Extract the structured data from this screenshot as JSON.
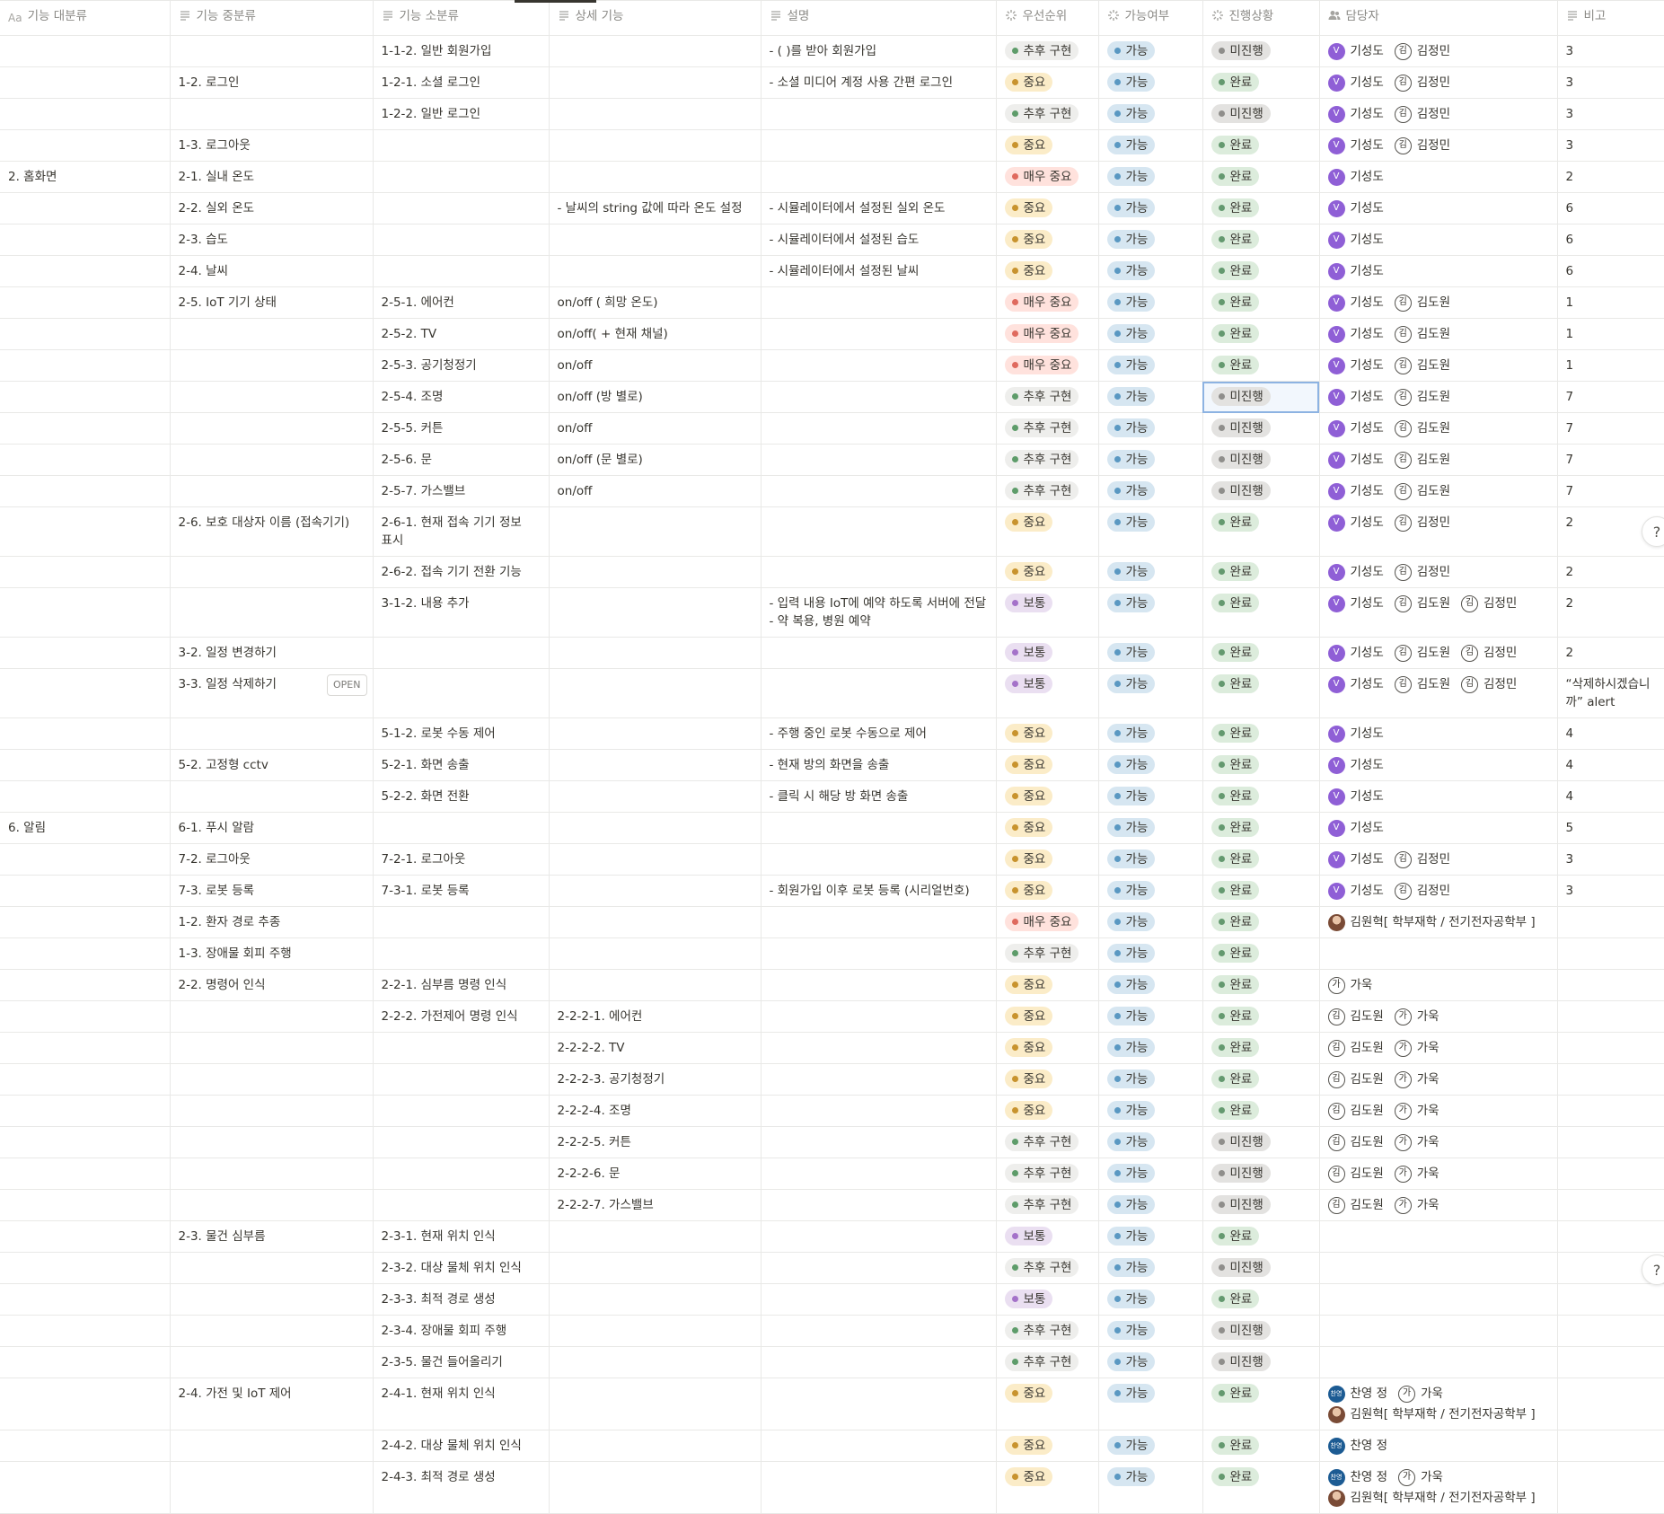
{
  "columns": [
    {
      "icon": "Aa",
      "label": "기능 대분류",
      "kind": "title"
    },
    {
      "label": "기능 중분류",
      "kind": "text"
    },
    {
      "label": "기능 소분류",
      "kind": "text"
    },
    {
      "label": "상세 기능",
      "kind": "text"
    },
    {
      "label": "설명",
      "kind": "text"
    },
    {
      "label": "우선순위",
      "kind": "select"
    },
    {
      "label": "가능여부",
      "kind": "select"
    },
    {
      "label": "진행상황",
      "kind": "select"
    },
    {
      "label": "담당자",
      "kind": "person"
    },
    {
      "label": "비고",
      "kind": "text"
    }
  ],
  "tag_colors": {
    "추후 구현": [
      "#eeeeec",
      "#5e9c6a"
    ],
    "중요": [
      "#fbecc8",
      "#c8932e"
    ],
    "매우 중요": [
      "#ffe2dd",
      "#df6a5e"
    ],
    "보통": [
      "#eadff1",
      "#a472c9"
    ],
    "가능": [
      "#d6e6f1",
      "#5a98c2"
    ],
    "완료": [
      "#dcecdc",
      "#64996f"
    ],
    "미진행": [
      "#e3e2e0",
      "#8f8e8b"
    ]
  },
  "open_button": "OPEN",
  "help_buttons": [
    "?",
    "?"
  ],
  "rows": [
    {
      "minor": "1-1-2. 일반 회원가입",
      "desc": [
        "- ( )를 받아 회원가입"
      ],
      "priority": "추후 구현",
      "possible": "가능",
      "status": "미진행",
      "assignees": [
        {
          "avatar": "V",
          "name": "기성도"
        },
        {
          "avatar": "김",
          "name": "김정민"
        }
      ],
      "note": "3"
    },
    {
      "middle": "1-2. 로그인",
      "minor": "1-2-1. 소셜 로그인",
      "desc": [
        "- 소셜 미디어 계정 사용 간편 로그인"
      ],
      "priority": "중요",
      "possible": "가능",
      "status": "완료",
      "assignees": [
        {
          "avatar": "V",
          "name": "기성도"
        },
        {
          "avatar": "김",
          "name": "김정민"
        }
      ],
      "note": "3"
    },
    {
      "minor": "1-2-2. 일반 로그인",
      "priority": "추후 구현",
      "possible": "가능",
      "status": "미진행",
      "assignees": [
        {
          "avatar": "V",
          "name": "기성도"
        },
        {
          "avatar": "김",
          "name": "김정민"
        }
      ],
      "note": "3"
    },
    {
      "middle": "1-3. 로그아웃",
      "priority": "중요",
      "possible": "가능",
      "status": "완료",
      "assignees": [
        {
          "avatar": "V",
          "name": "기성도"
        },
        {
          "avatar": "김",
          "name": "김정민"
        }
      ],
      "note": "3"
    },
    {
      "major": "2. 홈화면",
      "middle": "2-1. 실내 온도",
      "priority": "매우 중요",
      "possible": "가능",
      "status": "완료",
      "assignees": [
        {
          "avatar": "V",
          "name": "기성도"
        }
      ],
      "note": "2"
    },
    {
      "middle": "2-2. 실외 온도",
      "detail": "- 날씨의 string 값에 따라 온도 설정",
      "desc": [
        "- 시뮬레이터에서 설정된 실외 온도"
      ],
      "priority": "중요",
      "possible": "가능",
      "status": "완료",
      "assignees": [
        {
          "avatar": "V",
          "name": "기성도"
        }
      ],
      "note": "6"
    },
    {
      "middle": "2-3. 습도",
      "desc": [
        "- 시뮬레이터에서 설정된 습도"
      ],
      "priority": "중요",
      "possible": "가능",
      "status": "완료",
      "assignees": [
        {
          "avatar": "V",
          "name": "기성도"
        }
      ],
      "note": "6"
    },
    {
      "middle": "2-4. 날씨",
      "desc": [
        "- 시뮬레이터에서 설정된 날씨"
      ],
      "priority": "중요",
      "possible": "가능",
      "status": "완료",
      "assignees": [
        {
          "avatar": "V",
          "name": "기성도"
        }
      ],
      "note": "6"
    },
    {
      "middle": "2-5. IoT 기기 상태",
      "minor": "2-5-1. 에어컨",
      "detail": "on/off ( 희망 온도)",
      "priority": "매우 중요",
      "possible": "가능",
      "status": "완료",
      "assignees": [
        {
          "avatar": "V",
          "name": "기성도"
        },
        {
          "avatar": "김",
          "name": "김도원"
        }
      ],
      "note": "1"
    },
    {
      "minor": "2-5-2. TV",
      "detail": "on/off( + 현재 채널)",
      "priority": "매우 중요",
      "possible": "가능",
      "status": "완료",
      "assignees": [
        {
          "avatar": "V",
          "name": "기성도"
        },
        {
          "avatar": "김",
          "name": "김도원"
        }
      ],
      "note": "1"
    },
    {
      "minor": "2-5-3. 공기청정기",
      "detail": "on/off",
      "priority": "매우 중요",
      "possible": "가능",
      "status": "완료",
      "assignees": [
        {
          "avatar": "V",
          "name": "기성도"
        },
        {
          "avatar": "김",
          "name": "김도원"
        }
      ],
      "note": "1"
    },
    {
      "minor": "2-5-4. 조명",
      "detail": "on/off (방 별로)",
      "priority": "추후 구현",
      "possible": "가능",
      "status": "미진행",
      "status_selected": true,
      "assignees": [
        {
          "avatar": "V",
          "name": "기성도"
        },
        {
          "avatar": "김",
          "name": "김도원"
        }
      ],
      "note": "7"
    },
    {
      "minor": "2-5-5. 커튼",
      "detail": "on/off",
      "priority": "추후 구현",
      "possible": "가능",
      "status": "미진행",
      "assignees": [
        {
          "avatar": "V",
          "name": "기성도"
        },
        {
          "avatar": "김",
          "name": "김도원"
        }
      ],
      "note": "7"
    },
    {
      "minor": "2-5-6. 문",
      "detail": "on/off (문 별로)",
      "priority": "추후 구현",
      "possible": "가능",
      "status": "미진행",
      "assignees": [
        {
          "avatar": "V",
          "name": "기성도"
        },
        {
          "avatar": "김",
          "name": "김도원"
        }
      ],
      "note": "7"
    },
    {
      "minor": "2-5-7. 가스밸브",
      "detail": "on/off",
      "priority": "추후 구현",
      "possible": "가능",
      "status": "미진행",
      "assignees": [
        {
          "avatar": "V",
          "name": "기성도"
        },
        {
          "avatar": "김",
          "name": "김도원"
        }
      ],
      "note": "7"
    },
    {
      "middle": "2-6. 보호 대상자 이름 (접속기기)",
      "minor": "2-6-1. 현재 접속 기기 정보 표시",
      "priority": "중요",
      "possible": "가능",
      "status": "완료",
      "assignees": [
        {
          "avatar": "V",
          "name": "기성도"
        },
        {
          "avatar": "김",
          "name": "김정민"
        }
      ],
      "note": "2"
    },
    {
      "minor": "2-6-2. 접속 기기 전환 기능",
      "priority": "중요",
      "possible": "가능",
      "status": "완료",
      "assignees": [
        {
          "avatar": "V",
          "name": "기성도"
        },
        {
          "avatar": "김",
          "name": "김정민"
        }
      ],
      "note": "2"
    },
    {
      "minor": "3-1-2. 내용 추가",
      "desc": [
        "- 입력 내용 IoT에 예약 하도록 서버에 전달",
        "- 약 복용, 병원 예약"
      ],
      "priority": "보통",
      "possible": "가능",
      "status": "완료",
      "assignees": [
        {
          "avatar": "V",
          "name": "기성도"
        },
        {
          "avatar": "김",
          "name": "김도원"
        },
        {
          "avatar": "김",
          "name": "김정민"
        }
      ],
      "note": "2"
    },
    {
      "middle": "3-2. 일정 변경하기",
      "priority": "보통",
      "possible": "가능",
      "status": "완료",
      "assignees": [
        {
          "avatar": "V",
          "name": "기성도"
        },
        {
          "avatar": "김",
          "name": "김도원"
        },
        {
          "avatar": "김",
          "name": "김정민"
        }
      ],
      "note": "2"
    },
    {
      "middle": "3-3. 일정 삭제하기",
      "open": true,
      "priority": "보통",
      "possible": "가능",
      "status": "완료",
      "assignees": [
        {
          "avatar": "V",
          "name": "기성도"
        },
        {
          "avatar": "김",
          "name": "김도원"
        },
        {
          "avatar": "김",
          "name": "김정민"
        }
      ],
      "note": "“삭제하시겠습니까” alert"
    },
    {
      "minor": "5-1-2. 로봇 수동 제어",
      "desc": [
        "- 주행  중인 로봇 수동으로 제어"
      ],
      "priority": "중요",
      "possible": "가능",
      "status": "완료",
      "assignees": [
        {
          "avatar": "V",
          "name": "기성도"
        }
      ],
      "note": "4"
    },
    {
      "middle": "5-2. 고정형 cctv",
      "minor": "5-2-1. 화면 송출",
      "desc": [
        "- 현재 방의 화면을 송출"
      ],
      "priority": "중요",
      "possible": "가능",
      "status": "완료",
      "assignees": [
        {
          "avatar": "V",
          "name": "기성도"
        }
      ],
      "note": "4"
    },
    {
      "minor": "5-2-2. 화면 전환",
      "desc": [
        "- 클릭 시 해당 방 화면 송출"
      ],
      "priority": "중요",
      "possible": "가능",
      "status": "완료",
      "assignees": [
        {
          "avatar": "V",
          "name": "기성도"
        }
      ],
      "note": "4"
    },
    {
      "major": "6. 알림",
      "middle": "6-1. 푸시 알람",
      "priority": "중요",
      "possible": "가능",
      "status": "완료",
      "assignees": [
        {
          "avatar": "V",
          "name": "기성도"
        }
      ],
      "note": "5"
    },
    {
      "middle": "7-2. 로그아웃",
      "minor": "7-2-1. 로그아웃",
      "priority": "중요",
      "possible": "가능",
      "status": "완료",
      "assignees": [
        {
          "avatar": "V",
          "name": "기성도"
        },
        {
          "avatar": "김",
          "name": "김정민"
        }
      ],
      "note": "3"
    },
    {
      "middle": "7-3. 로봇 등록",
      "minor": "7-3-1. 로봇 등록",
      "desc": [
        "- 회원가입 이후 로봇 등록 (시리얼번호)"
      ],
      "priority": "중요",
      "possible": "가능",
      "status": "완료",
      "assignees": [
        {
          "avatar": "V",
          "name": "기성도"
        },
        {
          "avatar": "김",
          "name": "김정민"
        }
      ],
      "note": "3"
    },
    {
      "middle": "1-2. 환자 경로 추종",
      "priority": "매우 중요",
      "possible": "가능",
      "status": "완료",
      "assignees": [
        {
          "photo": true,
          "name": "김원혁[ 학부재학 / 전기전자공학부 ]"
        }
      ]
    },
    {
      "middle": "1-3. 장애물 회피 주행",
      "priority": "추후 구현",
      "possible": "가능",
      "status": "완료"
    },
    {
      "middle": "2-2. 명령어 인식",
      "minor": "2-2-1. 심부름 명령 인식",
      "priority": "중요",
      "possible": "가능",
      "status": "완료",
      "assignees": [
        {
          "avatar": "가",
          "name": "가욱"
        }
      ]
    },
    {
      "minor": "2-2-2. 가전제어 명령 인식",
      "detail": "2-2-2-1. 에어컨",
      "priority": "중요",
      "possible": "가능",
      "status": "완료",
      "assignees": [
        {
          "avatar": "김",
          "name": "김도원"
        },
        {
          "avatar": "가",
          "name": "가욱"
        }
      ]
    },
    {
      "detail": "2-2-2-2. TV",
      "priority": "중요",
      "possible": "가능",
      "status": "완료",
      "assignees": [
        {
          "avatar": "김",
          "name": "김도원"
        },
        {
          "avatar": "가",
          "name": "가욱"
        }
      ]
    },
    {
      "detail": "2-2-2-3. 공기청정기",
      "priority": "중요",
      "possible": "가능",
      "status": "완료",
      "assignees": [
        {
          "avatar": "김",
          "name": "김도원"
        },
        {
          "avatar": "가",
          "name": "가욱"
        }
      ]
    },
    {
      "detail": "2-2-2-4. 조명",
      "priority": "중요",
      "possible": "가능",
      "status": "완료",
      "assignees": [
        {
          "avatar": "김",
          "name": "김도원"
        },
        {
          "avatar": "가",
          "name": "가욱"
        }
      ]
    },
    {
      "detail": "2-2-2-5. 커튼",
      "priority": "추후 구현",
      "possible": "가능",
      "status": "미진행",
      "assignees": [
        {
          "avatar": "김",
          "name": "김도원"
        },
        {
          "avatar": "가",
          "name": "가욱"
        }
      ]
    },
    {
      "detail": "2-2-2-6. 문",
      "priority": "추후 구현",
      "possible": "가능",
      "status": "미진행",
      "assignees": [
        {
          "avatar": "김",
          "name": "김도원"
        },
        {
          "avatar": "가",
          "name": "가욱"
        }
      ]
    },
    {
      "detail": "2-2-2-7. 가스밸브",
      "priority": "추후 구현",
      "possible": "가능",
      "status": "미진행",
      "assignees": [
        {
          "avatar": "김",
          "name": "김도원"
        },
        {
          "avatar": "가",
          "name": "가욱"
        }
      ]
    },
    {
      "middle": "2-3. 물건 심부름",
      "minor": "2-3-1. 현재 위치 인식",
      "priority": "보통",
      "possible": "가능",
      "status": "완료"
    },
    {
      "minor": "2-3-2. 대상 물체 위치 인식",
      "priority": "추후 구현",
      "possible": "가능",
      "status": "미진행"
    },
    {
      "minor": "2-3-3. 최적 경로 생성",
      "priority": "보통",
      "possible": "가능",
      "status": "완료"
    },
    {
      "minor": "2-3-4. 장애물 회피 주행",
      "priority": "추후 구현",
      "possible": "가능",
      "status": "미진행"
    },
    {
      "minor": "2-3-5. 물건 들어올리기",
      "priority": "추후 구현",
      "possible": "가능",
      "status": "미진행"
    },
    {
      "middle": "2-4. 가전 및 IoT 제어",
      "minor": "2-4-1. 현재 위치 인식",
      "priority": "중요",
      "possible": "가능",
      "status": "완료",
      "assignees": [
        {
          "badge": "찬영",
          "name": "찬영 정"
        },
        {
          "avatar": "가",
          "name": "가욱"
        },
        {
          "photo": true,
          "name": "김원혁[ 학부재학 / 전기전자공학부 ]"
        }
      ]
    },
    {
      "minor": "2-4-2. 대상 물체 위치 인식",
      "priority": "중요",
      "possible": "가능",
      "status": "완료",
      "assignees": [
        {
          "badge": "찬영",
          "name": "찬영 정"
        }
      ]
    },
    {
      "minor": "2-4-3. 최적 경로 생성",
      "priority": "중요",
      "possible": "가능",
      "status": "완료",
      "assignees": [
        {
          "badge": "찬영",
          "name": "찬영 정"
        },
        {
          "avatar": "가",
          "name": "가욱"
        },
        {
          "photo": true,
          "name": "김원혁[ 학부재학 / 전기전자공학부 ]"
        }
      ]
    }
  ]
}
